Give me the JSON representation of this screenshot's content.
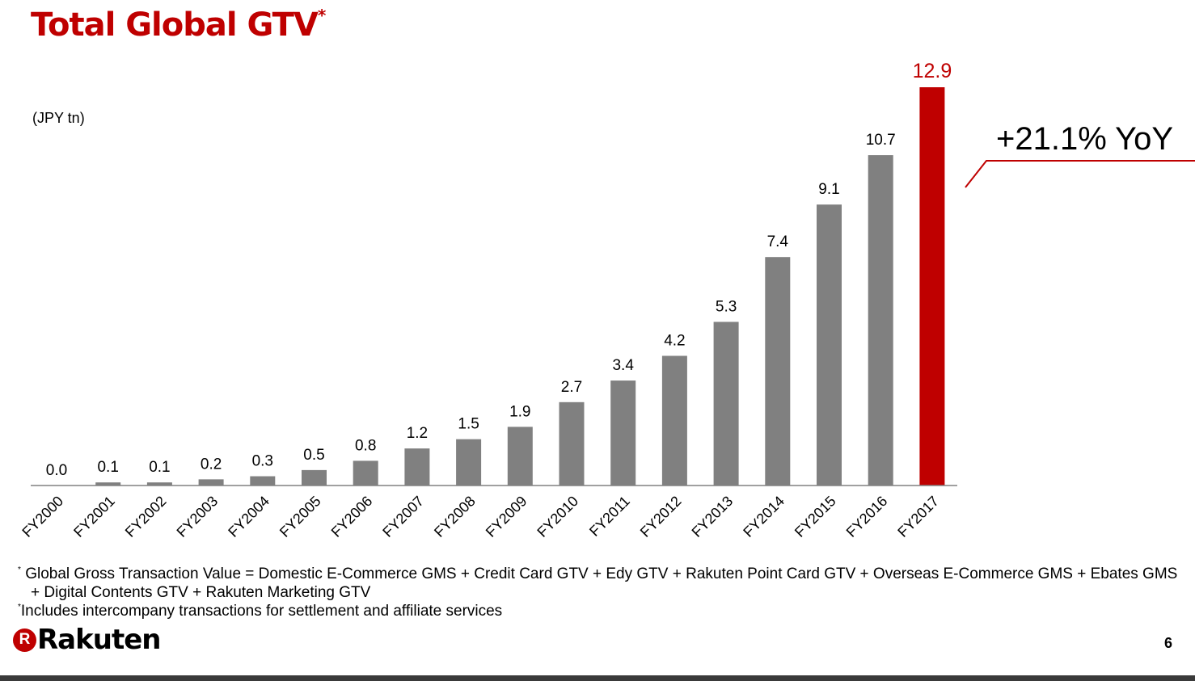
{
  "slide": {
    "title": "Total Global GTV",
    "title_mark": "*",
    "yoy_label": "+21.1% YoY",
    "footnotes": [
      {
        "mark": "*",
        "text": "Global Gross Transaction Value = Domestic E-Commerce GMS + Credit Card GTV + Edy GTV + Rakuten Point Card GTV + Overseas E-Commerce GMS + Ebates GMS"
      },
      {
        "mark": "",
        "text": "+ Digital Contents GTV + Rakuten Marketing GTV"
      },
      {
        "mark": "*",
        "text": "Includes intercompany transactions for settlement and affiliate services"
      }
    ],
    "logo_text": "Rakuten",
    "logo_mark": "R",
    "page_number": "6"
  },
  "colors": {
    "accent": "#bf0000",
    "bar": "#808080",
    "highlight_bar": "#bf0000"
  },
  "chart_data": {
    "type": "bar",
    "title": "Total Global GTV",
    "ylabel": "(JPY tn)",
    "categories": [
      "FY2000",
      "FY2001",
      "FY2002",
      "FY2003",
      "FY2004",
      "FY2005",
      "FY2006",
      "FY2007",
      "FY2008",
      "FY2009",
      "FY2010",
      "FY2011",
      "FY2012",
      "FY2013",
      "FY2014",
      "FY2015",
      "FY2016",
      "FY2017"
    ],
    "values": [
      0.0,
      0.1,
      0.1,
      0.2,
      0.3,
      0.5,
      0.8,
      1.2,
      1.5,
      1.9,
      2.7,
      3.4,
      4.2,
      5.3,
      7.4,
      9.1,
      10.7,
      12.9
    ],
    "data_labels": [
      "0.0",
      "0.1",
      "0.1",
      "0.2",
      "0.3",
      "0.5",
      "0.8",
      "1.2",
      "1.5",
      "1.9",
      "2.7",
      "3.4",
      "4.2",
      "5.3",
      "7.4",
      "9.1",
      "10.7",
      "12.9"
    ],
    "highlight_index": 17,
    "ylim": [
      0,
      12.9
    ],
    "grid": false,
    "annotation": "+21.1% YoY"
  }
}
